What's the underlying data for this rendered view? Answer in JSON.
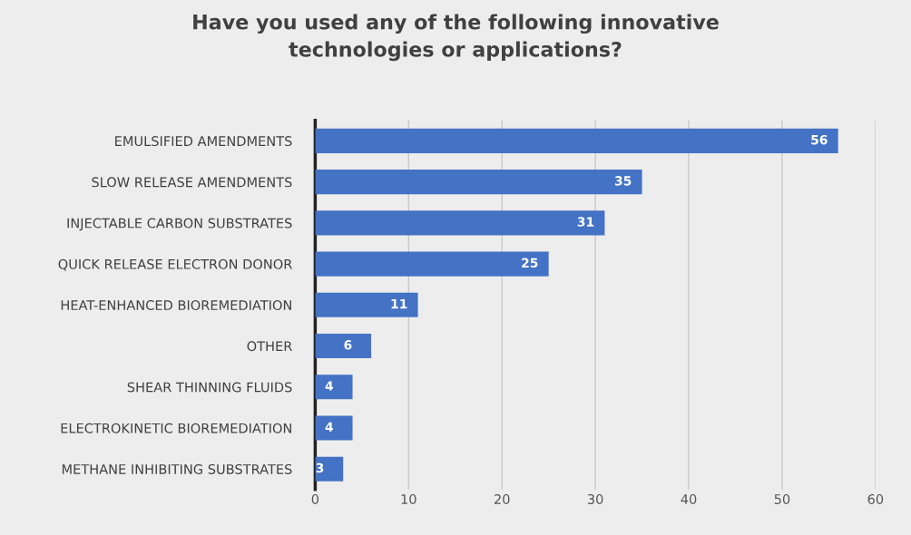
{
  "chart_data": {
    "type": "bar",
    "orientation": "horizontal",
    "title": "Have you used any of the following innovative\ntechnologies or applications?",
    "categories": [
      "EMULSIFIED AMENDMENTS",
      "SLOW RELEASE AMENDMENTS",
      "INJECTABLE CARBON SUBSTRATES",
      "QUICK RELEASE ELECTRON DONOR",
      "HEAT-ENHANCED BIOREMEDIATION",
      "OTHER",
      "SHEAR THINNING FLUIDS",
      "ELECTROKINETIC BIOREMEDIATION",
      "METHANE INHIBITING SUBSTRATES"
    ],
    "values": [
      56,
      35,
      31,
      25,
      11,
      6,
      4,
      4,
      3
    ],
    "color": "#4472c4",
    "xlim": [
      0,
      60
    ],
    "xticks": [
      0,
      10,
      20,
      30,
      40,
      50,
      60
    ],
    "grid": "x",
    "data_labels": true
  }
}
